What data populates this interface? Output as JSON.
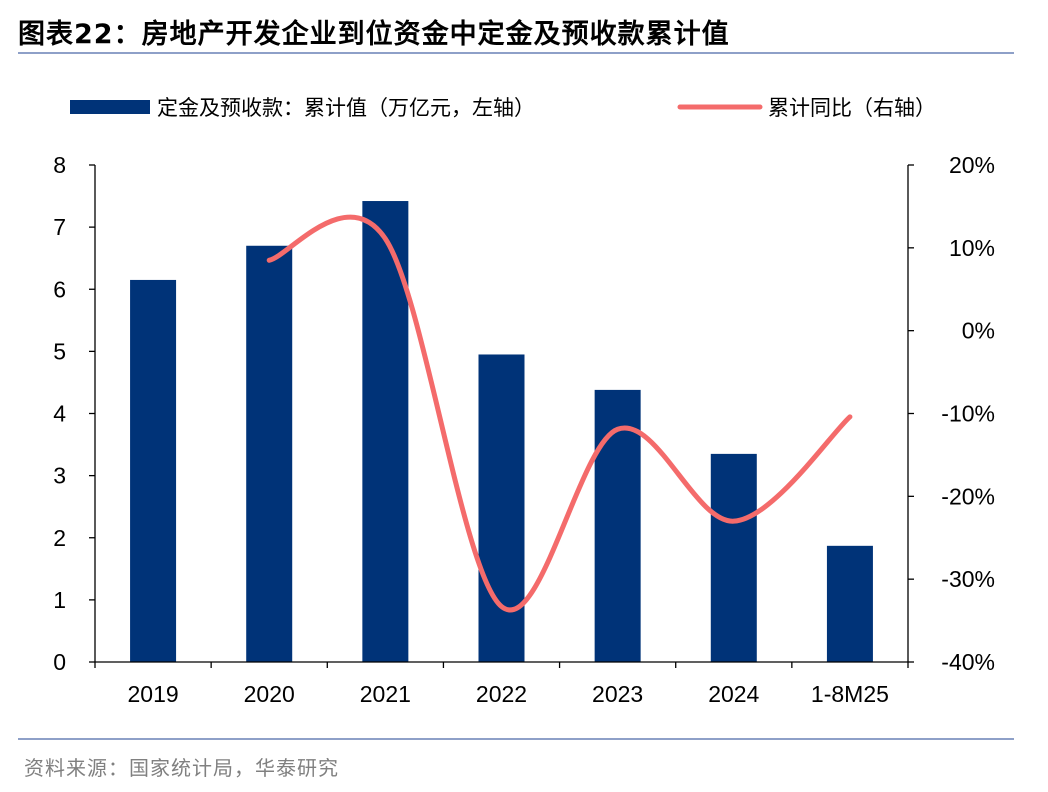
{
  "title": "图表22：房地产开发企业到位资金中定金及预收款累计值",
  "source": "资料来源：国家统计局，华泰研究",
  "colors": {
    "bar": "#003378",
    "line": "#f46b6b"
  },
  "chart_data": {
    "type": "bar+line",
    "categories": [
      "2019",
      "2020",
      "2021",
      "2022",
      "2023",
      "2024",
      "1-8M25"
    ],
    "series": [
      {
        "name": "定金及预收款：累计值（万亿元，左轴）",
        "type": "bar",
        "axis": "left",
        "values": [
          6.15,
          6.7,
          7.42,
          4.95,
          4.38,
          3.35,
          1.87
        ]
      },
      {
        "name": "累计同比（右轴）",
        "type": "line",
        "axis": "right",
        "values": [
          null,
          8.5,
          11.1,
          -33.3,
          -11.9,
          -23.0,
          -10.4
        ]
      }
    ],
    "left_axis": {
      "ylim": [
        0,
        8
      ],
      "ticks": [
        0,
        1,
        2,
        3,
        4,
        5,
        6,
        7,
        8
      ]
    },
    "right_axis": {
      "ylim": [
        -40,
        20
      ],
      "ticks": [
        "-40%",
        "-30%",
        "-20%",
        "-10%",
        "0%",
        "10%",
        "20%"
      ]
    },
    "legend_position": "top",
    "grid": false
  }
}
